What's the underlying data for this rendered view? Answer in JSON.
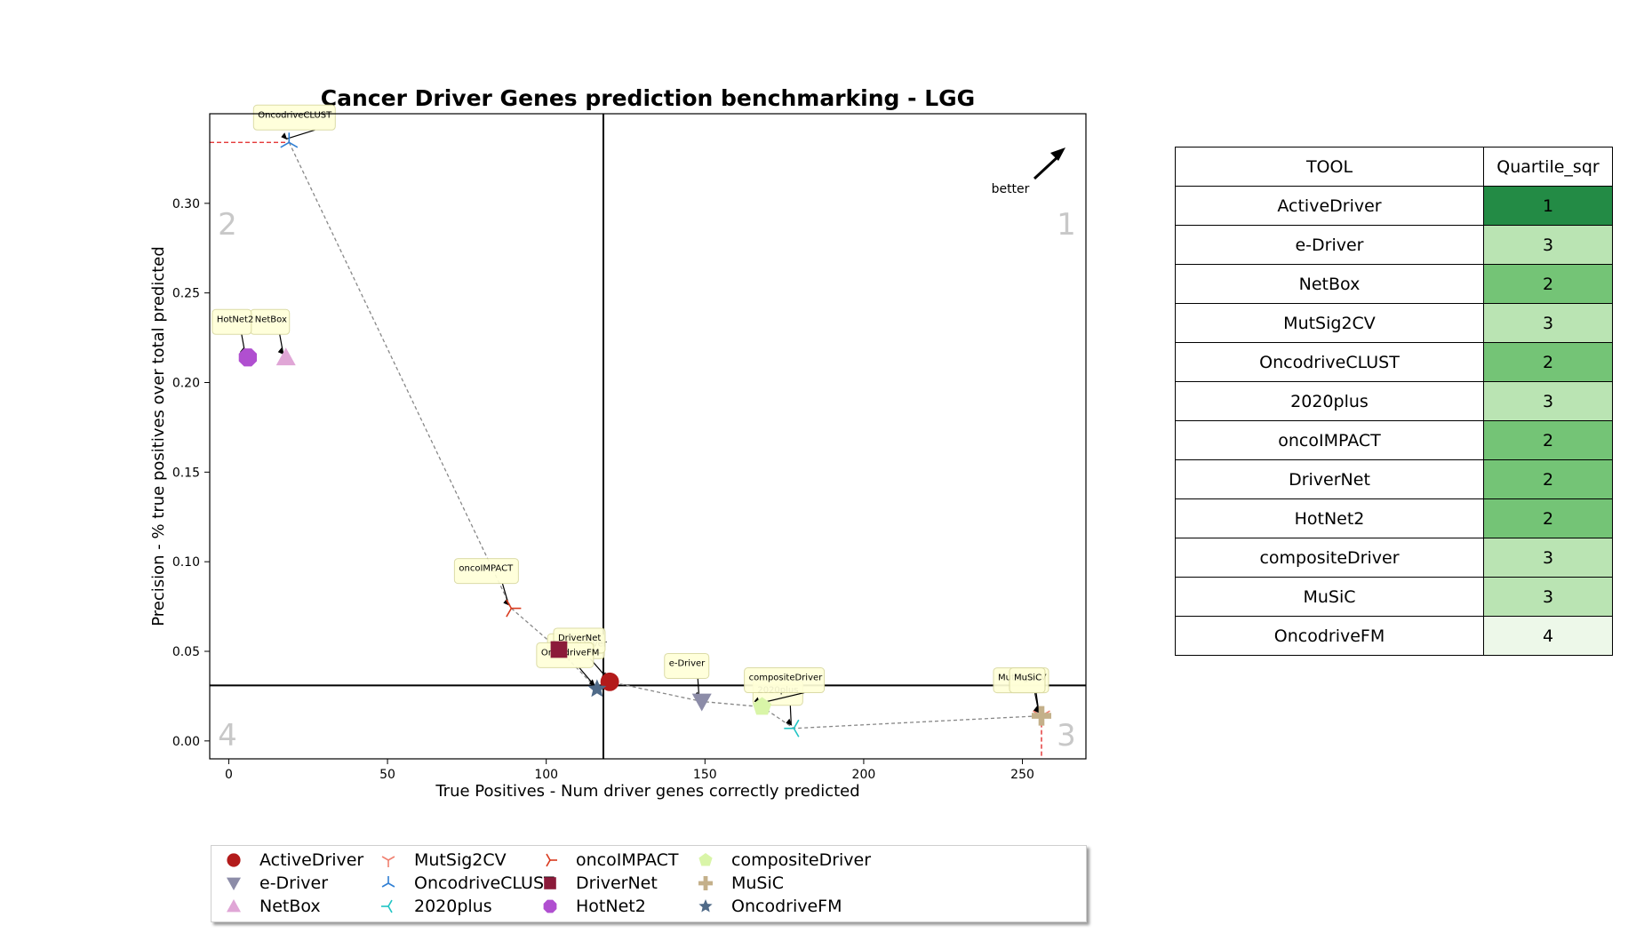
{
  "chart_data": {
    "type": "scatter",
    "title": "Cancer Driver Genes prediction benchmarking - LGG",
    "xlabel": "True Positives - Num driver genes correctly predicted",
    "ylabel": "Precision - % true positives over total predicted",
    "xlim": [
      -6,
      270
    ],
    "ylim": [
      -0.01,
      0.35
    ],
    "xticks": [
      0,
      50,
      100,
      150,
      200,
      250
    ],
    "yticks": [
      0.0,
      0.05,
      0.1,
      0.15,
      0.2,
      0.25,
      0.3
    ],
    "ytick_labels": [
      "0.00",
      "0.05",
      "0.10",
      "0.15",
      "0.20",
      "0.25",
      "0.30"
    ],
    "xtick_labels": [
      "0",
      "50",
      "100",
      "150",
      "200",
      "250"
    ],
    "median_x": 118,
    "median_y": 0.031,
    "quadrant_labels": [
      "1",
      "2",
      "3",
      "4"
    ],
    "better_label": "better",
    "grid": false,
    "legend_position": "bottom",
    "points": [
      {
        "name": "ActiveDriver",
        "x": 120,
        "y": 0.033,
        "color": "#b31b1b",
        "marker": "circle"
      },
      {
        "name": "e-Driver",
        "x": 149,
        "y": 0.022,
        "color": "#8c8ca8",
        "marker": "triangle-down"
      },
      {
        "name": "NetBox",
        "x": 18,
        "y": 0.214,
        "color": "#e0a6d6",
        "marker": "triangle-up"
      },
      {
        "name": "MutSig2CV",
        "x": 256,
        "y": 0.014,
        "color": "#f08070",
        "marker": "tri-down"
      },
      {
        "name": "OncodriveCLUST",
        "x": 19,
        "y": 0.334,
        "color": "#2f7fd4",
        "marker": "tri-up"
      },
      {
        "name": "2020plus",
        "x": 178,
        "y": 0.007,
        "color": "#20c4c4",
        "marker": "tri-left"
      },
      {
        "name": "oncoIMPACT",
        "x": 89,
        "y": 0.074,
        "color": "#d93a1e",
        "marker": "tri-right"
      },
      {
        "name": "DriverNet",
        "x": 104,
        "y": 0.051,
        "color": "#8b1a3a",
        "marker": "square"
      },
      {
        "name": "HotNet2",
        "x": 6,
        "y": 0.214,
        "color": "#b04fd0",
        "marker": "octagon"
      },
      {
        "name": "compositeDriver",
        "x": 168,
        "y": 0.019,
        "color": "#d9f5a8",
        "marker": "pentagon"
      },
      {
        "name": "MuSiC",
        "x": 256,
        "y": 0.014,
        "color": "#c4b08a",
        "marker": "plus"
      },
      {
        "name": "OncodriveFM",
        "x": 116,
        "y": 0.029,
        "color": "#4f6a88",
        "marker": "star"
      }
    ],
    "pareto_front": [
      "OncodriveCLUST",
      "oncoIMPACT",
      "DriverNet",
      "OncodriveFM",
      "ActiveDriver",
      "e-Driver",
      "compositeDriver",
      "2020plus",
      "MuSiC"
    ]
  },
  "table": {
    "headers": [
      "TOOL",
      "Quartile_sqr"
    ],
    "rows": [
      {
        "tool": "ActiveDriver",
        "quartile": "1"
      },
      {
        "tool": "e-Driver",
        "quartile": "3"
      },
      {
        "tool": "NetBox",
        "quartile": "2"
      },
      {
        "tool": "MutSig2CV",
        "quartile": "3"
      },
      {
        "tool": "OncodriveCLUST",
        "quartile": "2"
      },
      {
        "tool": "2020plus",
        "quartile": "3"
      },
      {
        "tool": "oncoIMPACT",
        "quartile": "2"
      },
      {
        "tool": "DriverNet",
        "quartile": "2"
      },
      {
        "tool": "HotNet2",
        "quartile": "2"
      },
      {
        "tool": "compositeDriver",
        "quartile": "3"
      },
      {
        "tool": "MuSiC",
        "quartile": "3"
      },
      {
        "tool": "OncodriveFM",
        "quartile": "4"
      }
    ],
    "quartile_colors": {
      "1": "#238b45",
      "2": "#74c476",
      "3": "#bae4b3",
      "4": "#edf8e9"
    }
  }
}
